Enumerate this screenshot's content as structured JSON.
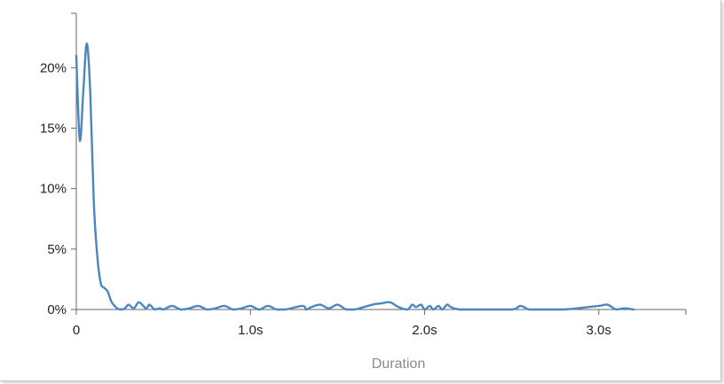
{
  "chart_data": {
    "type": "line",
    "title": "",
    "xlabel": "Duration",
    "ylabel": "",
    "xlim": [
      0,
      3.5
    ],
    "ylim": [
      0,
      24.5
    ],
    "x_ticks": [
      {
        "value": 0,
        "label": "0"
      },
      {
        "value": 1.0,
        "label": "1.0s"
      },
      {
        "value": 2.0,
        "label": "2.0s"
      },
      {
        "value": 3.0,
        "label": "3.0s"
      }
    ],
    "y_ticks": [
      {
        "value": 0,
        "label": "0%"
      },
      {
        "value": 5,
        "label": "5%"
      },
      {
        "value": 10,
        "label": "10%"
      },
      {
        "value": 15,
        "label": "15%"
      },
      {
        "value": 20,
        "label": "20%"
      }
    ],
    "grid": false,
    "line_color": "#4a86c0",
    "series": [
      {
        "x": [
          0.0,
          0.02,
          0.04,
          0.06,
          0.08,
          0.1,
          0.12,
          0.14,
          0.16,
          0.18,
          0.2,
          0.22,
          0.24,
          0.26,
          0.28,
          0.3,
          0.33,
          0.36,
          0.4,
          0.42,
          0.45,
          0.48,
          0.5,
          0.55,
          0.6,
          0.65,
          0.7,
          0.75,
          0.8,
          0.85,
          0.9,
          0.95,
          1.0,
          1.05,
          1.1,
          1.15,
          1.2,
          1.3,
          1.32,
          1.35,
          1.4,
          1.45,
          1.5,
          1.55,
          1.6,
          1.7,
          1.75,
          1.8,
          1.85,
          1.9,
          1.93,
          1.95,
          1.98,
          2.0,
          2.03,
          2.05,
          2.08,
          2.1,
          2.13,
          2.15,
          2.2,
          2.3,
          2.5,
          2.55,
          2.6,
          2.65,
          2.8,
          3.0,
          3.05,
          3.1,
          3.15,
          3.2
        ],
        "y": [
          21.0,
          14.0,
          18.0,
          22.0,
          18.0,
          9.0,
          4.5,
          2.2,
          1.8,
          1.5,
          0.7,
          0.3,
          0.05,
          0.0,
          0.1,
          0.4,
          0.1,
          0.6,
          0.1,
          0.4,
          0.0,
          0.1,
          0.0,
          0.3,
          0.0,
          0.1,
          0.3,
          0.0,
          0.1,
          0.3,
          0.0,
          0.1,
          0.3,
          0.0,
          0.3,
          0.0,
          0.0,
          0.3,
          0.0,
          0.2,
          0.4,
          0.1,
          0.4,
          0.0,
          0.0,
          0.4,
          0.5,
          0.6,
          0.2,
          0.0,
          0.4,
          0.2,
          0.4,
          0.0,
          0.3,
          0.0,
          0.3,
          0.0,
          0.4,
          0.2,
          0.0,
          0.0,
          0.0,
          0.3,
          0.0,
          0.0,
          0.0,
          0.3,
          0.4,
          0.0,
          0.1,
          0.0
        ]
      }
    ]
  }
}
